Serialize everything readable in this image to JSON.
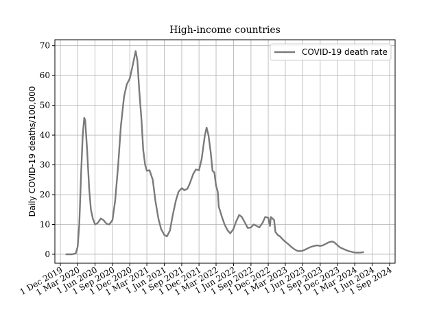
{
  "chart_data": {
    "type": "line",
    "title": "High-income countries",
    "xlabel": "",
    "ylabel": "Daily COVID-19 deaths/100,000",
    "ylim": [
      -3,
      72
    ],
    "xlim": [
      "2019-12-01",
      "2024-09-01"
    ],
    "grid": true,
    "legend_position": "top-right",
    "yticks": [
      0,
      10,
      20,
      30,
      40,
      50,
      60,
      70
    ],
    "xticks": [
      {
        "date": "2019-12-01",
        "label": "1 Dec 2019"
      },
      {
        "date": "2020-03-01",
        "label": "1 Mar 2020"
      },
      {
        "date": "2020-06-01",
        "label": "1 Jun 2020"
      },
      {
        "date": "2020-09-01",
        "label": "1 Sep 2020"
      },
      {
        "date": "2020-12-01",
        "label": "1 Dec 2020"
      },
      {
        "date": "2021-03-01",
        "label": "1 Mar 2021"
      },
      {
        "date": "2021-06-01",
        "label": "1 Jun 2021"
      },
      {
        "date": "2021-09-01",
        "label": "1 Sep 2021"
      },
      {
        "date": "2021-12-01",
        "label": "1 Dec 2021"
      },
      {
        "date": "2022-03-01",
        "label": "1 Mar 2022"
      },
      {
        "date": "2022-06-01",
        "label": "1 Jun 2022"
      },
      {
        "date": "2022-09-01",
        "label": "1 Sep 2022"
      },
      {
        "date": "2022-12-01",
        "label": "1 Dec 2022"
      },
      {
        "date": "2023-03-01",
        "label": "1 Mar 2023"
      },
      {
        "date": "2023-06-01",
        "label": "1 Jun 2023"
      },
      {
        "date": "2023-09-01",
        "label": "1 Sep 2023"
      },
      {
        "date": "2023-12-01",
        "label": "1 Dec 2023"
      },
      {
        "date": "2024-03-01",
        "label": "1 Mar 2024"
      },
      {
        "date": "2024-06-01",
        "label": "1 Jun 2024"
      },
      {
        "date": "2024-09-01",
        "label": "1 Sep 2024"
      }
    ],
    "series": [
      {
        "name": "COVID-19 death rate",
        "color": "#7a7a7a",
        "points": [
          [
            "2020-01-01",
            0
          ],
          [
            "2020-02-01",
            0
          ],
          [
            "2020-02-20",
            0.3
          ],
          [
            "2020-03-01",
            2.5
          ],
          [
            "2020-03-10",
            10
          ],
          [
            "2020-03-20",
            28
          ],
          [
            "2020-03-28",
            40
          ],
          [
            "2020-04-05",
            45.8
          ],
          [
            "2020-04-10",
            45
          ],
          [
            "2020-04-20",
            35
          ],
          [
            "2020-05-01",
            22
          ],
          [
            "2020-05-10",
            15
          ],
          [
            "2020-05-20",
            12
          ],
          [
            "2020-06-01",
            10
          ],
          [
            "2020-06-15",
            10.5
          ],
          [
            "2020-07-01",
            12
          ],
          [
            "2020-07-15",
            11.5
          ],
          [
            "2020-08-01",
            10.2
          ],
          [
            "2020-08-15",
            10
          ],
          [
            "2020-09-01",
            11.5
          ],
          [
            "2020-09-15",
            18
          ],
          [
            "2020-10-01",
            30
          ],
          [
            "2020-10-15",
            43
          ],
          [
            "2020-11-01",
            53
          ],
          [
            "2020-11-15",
            57
          ],
          [
            "2020-12-01",
            59
          ],
          [
            "2020-12-15",
            63
          ],
          [
            "2021-01-01",
            68.2
          ],
          [
            "2021-01-10",
            65
          ],
          [
            "2021-01-20",
            55
          ],
          [
            "2021-02-01",
            45
          ],
          [
            "2021-02-10",
            35
          ],
          [
            "2021-02-20",
            30
          ],
          [
            "2021-03-01",
            28
          ],
          [
            "2021-03-15",
            28.2
          ],
          [
            "2021-04-01",
            25
          ],
          [
            "2021-04-15",
            18
          ],
          [
            "2021-05-01",
            12
          ],
          [
            "2021-05-15",
            8.5
          ],
          [
            "2021-06-01",
            6.5
          ],
          [
            "2021-06-15",
            6
          ],
          [
            "2021-07-01",
            8
          ],
          [
            "2021-07-15",
            13
          ],
          [
            "2021-08-01",
            18
          ],
          [
            "2021-08-15",
            21
          ],
          [
            "2021-09-01",
            22.2
          ],
          [
            "2021-09-15",
            21.5
          ],
          [
            "2021-10-01",
            22
          ],
          [
            "2021-10-15",
            24
          ],
          [
            "2021-11-01",
            27
          ],
          [
            "2021-11-15",
            28.5
          ],
          [
            "2021-12-01",
            28.2
          ],
          [
            "2021-12-15",
            32
          ],
          [
            "2022-01-01",
            40
          ],
          [
            "2022-01-10",
            42.5
          ],
          [
            "2022-01-20",
            40
          ],
          [
            "2022-02-01",
            34
          ],
          [
            "2022-02-10",
            28
          ],
          [
            "2022-02-20",
            27.5
          ],
          [
            "2022-03-01",
            23
          ],
          [
            "2022-03-10",
            21
          ],
          [
            "2022-03-15",
            16
          ],
          [
            "2022-04-01",
            12.5
          ],
          [
            "2022-04-15",
            10
          ],
          [
            "2022-05-01",
            8
          ],
          [
            "2022-05-15",
            7
          ],
          [
            "2022-06-01",
            8.5
          ],
          [
            "2022-06-15",
            11
          ],
          [
            "2022-07-01",
            13.2
          ],
          [
            "2022-07-15",
            12.5
          ],
          [
            "2022-08-01",
            10.5
          ],
          [
            "2022-08-15",
            8.8
          ],
          [
            "2022-09-01",
            9
          ],
          [
            "2022-09-15",
            10
          ],
          [
            "2022-10-01",
            9.5
          ],
          [
            "2022-10-15",
            9
          ],
          [
            "2022-11-01",
            10.5
          ],
          [
            "2022-11-15",
            12.5
          ],
          [
            "2022-12-01",
            12.3
          ],
          [
            "2022-12-10",
            9.5
          ],
          [
            "2022-12-15",
            12.5
          ],
          [
            "2023-01-01",
            11.5
          ],
          [
            "2023-01-08",
            7.5
          ],
          [
            "2023-01-20",
            6.5
          ],
          [
            "2023-02-01",
            6
          ],
          [
            "2023-02-15",
            5
          ],
          [
            "2023-03-01",
            4.2
          ],
          [
            "2023-03-15",
            3.5
          ],
          [
            "2023-04-01",
            2.5
          ],
          [
            "2023-04-15",
            1.8
          ],
          [
            "2023-05-01",
            1.2
          ],
          [
            "2023-05-15",
            1
          ],
          [
            "2023-06-01",
            1.2
          ],
          [
            "2023-06-15",
            1.6
          ],
          [
            "2023-07-01",
            2.1
          ],
          [
            "2023-07-15",
            2.5
          ],
          [
            "2023-08-01",
            2.8
          ],
          [
            "2023-08-15",
            3
          ],
          [
            "2023-09-01",
            2.8
          ],
          [
            "2023-09-15",
            3
          ],
          [
            "2023-10-01",
            3.5
          ],
          [
            "2023-10-15",
            4
          ],
          [
            "2023-11-01",
            4.3
          ],
          [
            "2023-11-15",
            4
          ],
          [
            "2023-12-01",
            3
          ],
          [
            "2023-12-15",
            2.3
          ],
          [
            "2024-01-01",
            1.8
          ],
          [
            "2024-01-15",
            1.4
          ],
          [
            "2024-02-01",
            1
          ],
          [
            "2024-02-15",
            0.8
          ],
          [
            "2024-03-01",
            0.6
          ],
          [
            "2024-03-15",
            0.55
          ],
          [
            "2024-04-01",
            0.6
          ],
          [
            "2024-04-15",
            0.7
          ]
        ]
      }
    ]
  }
}
